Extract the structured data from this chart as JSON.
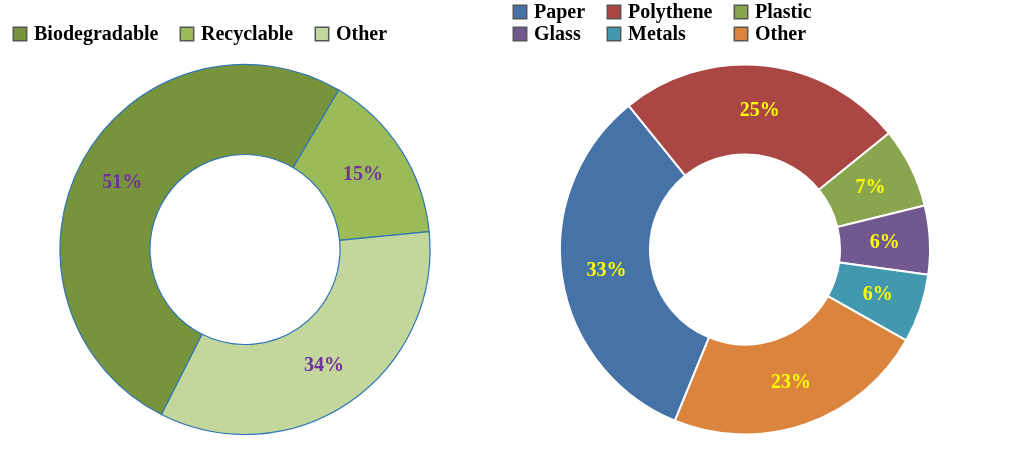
{
  "chart_data": [
    {
      "type": "donut",
      "categories": [
        "Biodegradable",
        "Recyclable",
        "Other"
      ],
      "values": [
        51,
        15,
        34
      ],
      "colors": [
        "#77933c",
        "#9bbb59",
        "#c3d69b"
      ],
      "value_labels": [
        "51%",
        "15%",
        "34%"
      ],
      "legend": "top"
    },
    {
      "type": "donut",
      "categories": [
        "Paper",
        "Polythene",
        "Plastic",
        "Glass",
        "Metals",
        "Other"
      ],
      "values": [
        33,
        25,
        7,
        6,
        6,
        23
      ],
      "colors": [
        "#4572a7",
        "#aa4643",
        "#89a54e",
        "#71588f",
        "#4198af",
        "#db843d"
      ],
      "value_labels": [
        "33%",
        "25%",
        "7%",
        "6%",
        "6%",
        "23%"
      ],
      "legend": "top"
    }
  ]
}
